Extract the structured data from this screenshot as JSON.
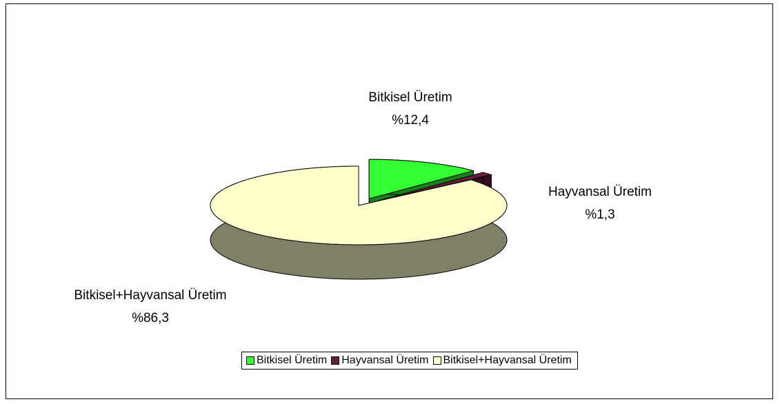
{
  "chart_data": {
    "type": "pie3d",
    "categories": [
      "Bitkisel Üretim",
      "Hayvansal Üretim",
      "Bitkisel+Hayvansal Üretim"
    ],
    "values": [
      12.4,
      1.3,
      86.3
    ],
    "value_labels": [
      "%12,4",
      "%1,3",
      "%86,3"
    ],
    "colors": [
      "#33ff33",
      "#66203f",
      "#ffffcc"
    ],
    "legend": "bottom"
  }
}
